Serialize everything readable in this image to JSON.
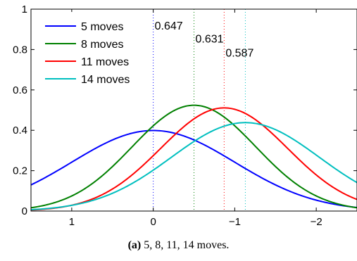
{
  "chart_data": {
    "type": "line",
    "title": "",
    "xlabel": "",
    "ylabel": "",
    "x_reversed": true,
    "xlim": [
      1.5,
      -2.5
    ],
    "ylim": [
      0,
      1
    ],
    "xticks": [
      1,
      0,
      -1,
      -2
    ],
    "xtick_labels": [
      "1",
      "0",
      "−1",
      "−2"
    ],
    "yticks": [
      0,
      0.2,
      0.4,
      0.6,
      0.8,
      1
    ],
    "ytick_labels": [
      "0",
      "0.2",
      "0.4",
      "0.6",
      "0.8",
      "1"
    ],
    "grid": false,
    "legend_position": "top-left",
    "series": [
      {
        "name": "5 moves",
        "color": "#0000ff",
        "mean": 0.0,
        "std": 1.0,
        "peak": 0.399
      },
      {
        "name": "8 moves",
        "color": "#008000",
        "mean": -0.5,
        "std": 0.76,
        "peak": 0.524
      },
      {
        "name": "11 moves",
        "color": "#ff0000",
        "mean": -0.87,
        "std": 0.78,
        "peak": 0.511
      },
      {
        "name": "14 moves",
        "color": "#00bfbf",
        "mean": -1.13,
        "std": 0.91,
        "peak": 0.438
      }
    ],
    "annotations": [
      {
        "text": "0.647",
        "x": 0.0,
        "y": 0.92
      },
      {
        "text": "0.631",
        "x": -0.5,
        "y": 0.855
      },
      {
        "text": "0.587",
        "x": -0.87,
        "y": 0.785
      }
    ]
  },
  "caption": {
    "label": "(a)",
    "text": " 5, 8, 11, 14 moves."
  }
}
